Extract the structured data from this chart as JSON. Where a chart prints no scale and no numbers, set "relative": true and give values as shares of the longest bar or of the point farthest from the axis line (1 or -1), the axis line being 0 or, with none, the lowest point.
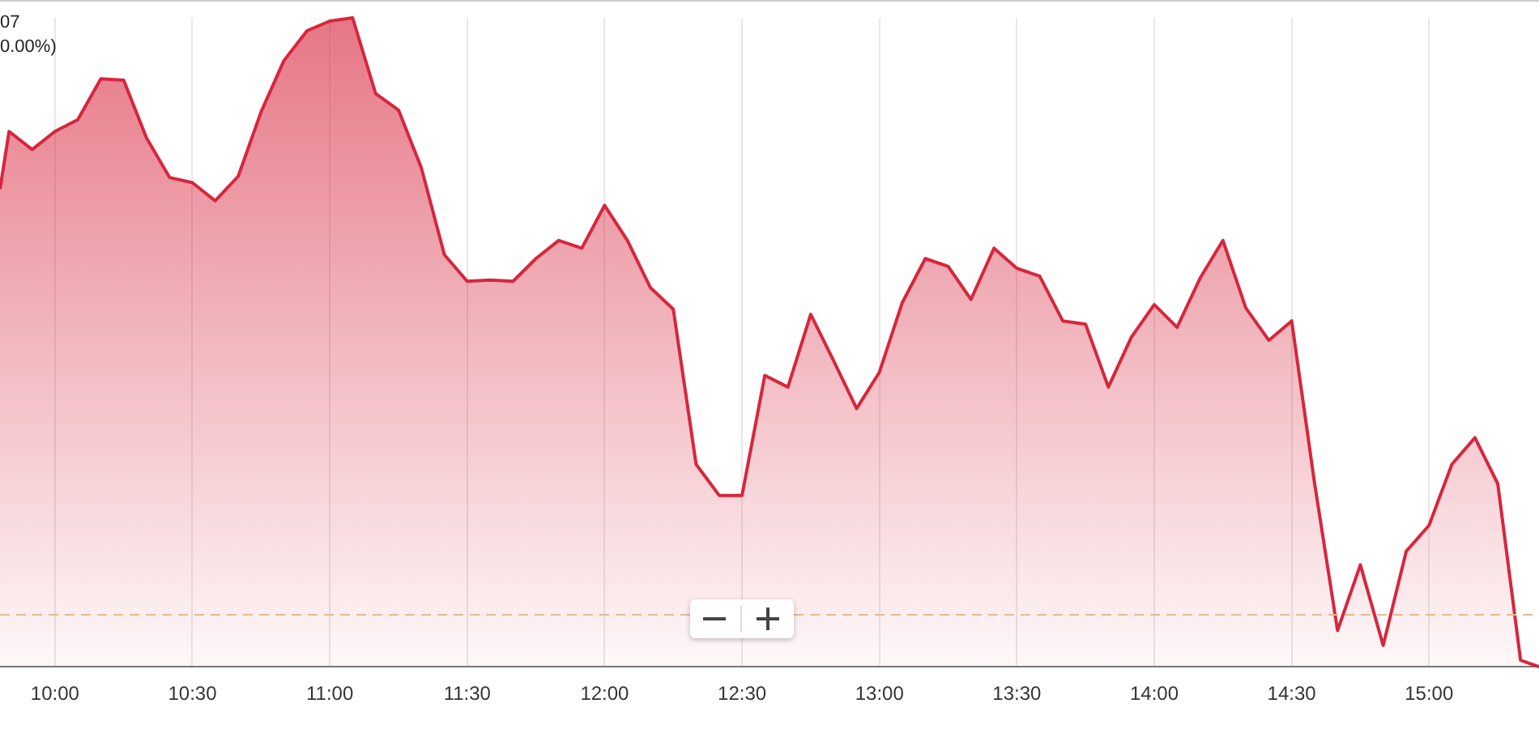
{
  "chart_data": {
    "type": "area",
    "relative": true,
    "color": "#d7263d",
    "x": [
      9.8,
      9.833,
      9.917,
      10,
      10.083,
      10.167,
      10.25,
      10.333,
      10.417,
      10.5,
      10.583,
      10.667,
      10.75,
      10.833,
      10.917,
      11,
      11.083,
      11.167,
      11.25,
      11.333,
      11.417,
      11.5,
      11.583,
      11.667,
      11.75,
      11.833,
      11.917,
      12,
      12.083,
      12.167,
      12.25,
      12.333,
      12.417,
      12.5,
      12.583,
      12.667,
      12.75,
      12.833,
      12.917,
      13,
      13.083,
      13.167,
      13.25,
      13.333,
      13.417,
      13.5,
      13.583,
      13.667,
      13.75,
      13.833,
      13.917,
      14,
      14.083,
      14.167,
      14.25,
      14.333,
      14.417,
      14.5,
      14.583,
      14.667,
      14.75,
      14.833,
      14.917,
      15,
      15.083,
      15.167,
      15.25,
      15.333,
      15.4
    ],
    "values": [
      0.736,
      0.825,
      0.797,
      0.825,
      0.843,
      0.906,
      0.904,
      0.815,
      0.754,
      0.746,
      0.718,
      0.756,
      0.855,
      0.934,
      0.98,
      0.995,
      1,
      0.883,
      0.858,
      0.769,
      0.635,
      0.594,
      0.596,
      0.594,
      0.629,
      0.657,
      0.645,
      0.711,
      0.657,
      0.584,
      0.551,
      0.312,
      0.264,
      0.264,
      0.449,
      0.431,
      0.543,
      0.472,
      0.398,
      0.454,
      0.561,
      0.629,
      0.617,
      0.566,
      0.645,
      0.614,
      0.602,
      0.533,
      0.528,
      0.431,
      0.508,
      0.558,
      0.523,
      0.599,
      0.657,
      0.553,
      0.503,
      0.533,
      0.284,
      0.056,
      0.157,
      0.033,
      0.178,
      0.218,
      0.312,
      0.353,
      0.282,
      0.01,
      0
    ],
    "xlim": [
      9.8,
      15.4
    ],
    "xticks": [
      {
        "value": 10,
        "label": "10:00"
      },
      {
        "value": 10.5,
        "label": "10:30"
      },
      {
        "value": 11,
        "label": "11:00"
      },
      {
        "value": 11.5,
        "label": "11:30"
      },
      {
        "value": 12,
        "label": "12:00"
      },
      {
        "value": 12.5,
        "label": "12:30"
      },
      {
        "value": 13,
        "label": "13:00"
      },
      {
        "value": 13.5,
        "label": "13:30"
      },
      {
        "value": 14,
        "label": "14:00"
      },
      {
        "value": 14.5,
        "label": "14:30"
      },
      {
        "value": 15,
        "label": "15:00"
      }
    ],
    "ref_lines": [
      {
        "axis": "y",
        "value": 0.08,
        "color": "#e9b98f",
        "line_style": "dashed"
      }
    ],
    "grid": "x",
    "legend": false,
    "marker": "none",
    "line_style": "solid",
    "annotations": [
      "07",
      "0.00%)"
    ]
  }
}
